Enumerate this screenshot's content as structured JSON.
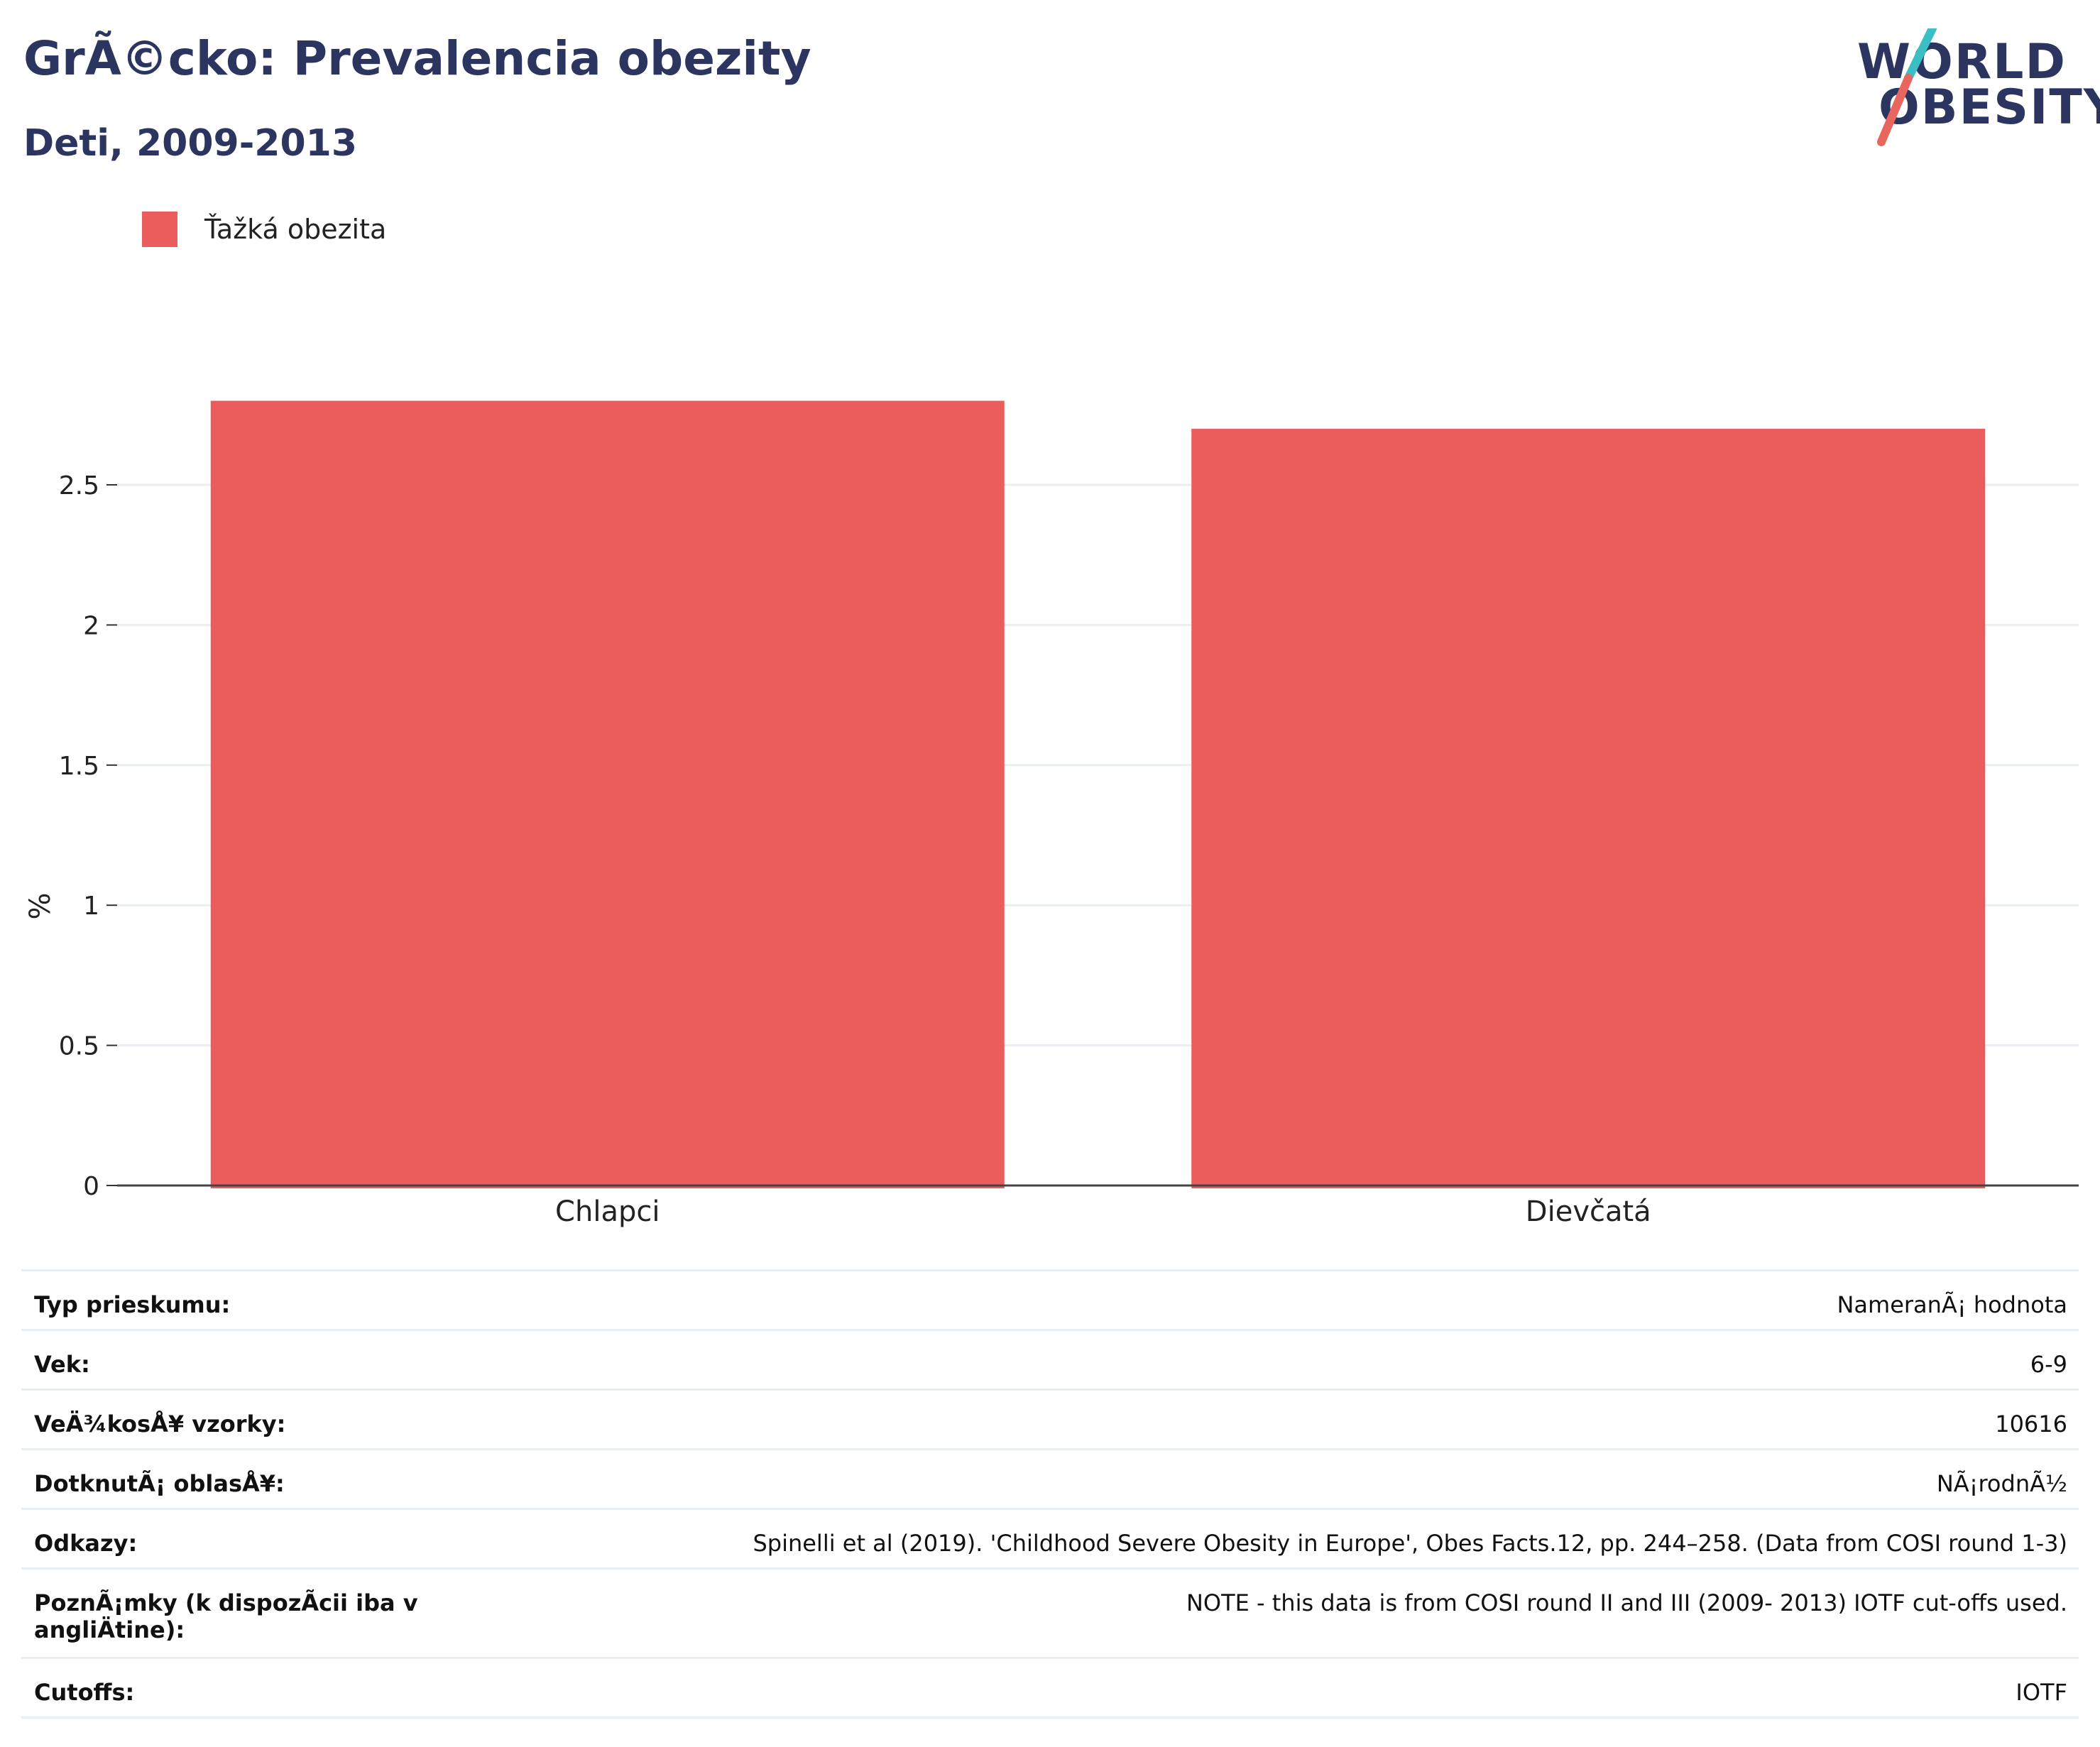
{
  "header": {
    "title": "GrÃ©cko: Prevalencia obezity",
    "subtitle": "Deti, 2009-2013"
  },
  "logo": {
    "line1": "WORLD",
    "line2": "OBESITY",
    "colors": {
      "text": "#2b3560",
      "slash_top": "#3bbfc4",
      "slash_bottom": "#e8665e"
    }
  },
  "legend": {
    "items": [
      {
        "label": "Ťažká obezita",
        "color": "#eb5c5c"
      }
    ]
  },
  "chart_data": {
    "type": "bar",
    "categories": [
      "Chlapci",
      "Dievčatá"
    ],
    "series": [
      {
        "name": "Ťažká obezita",
        "values": [
          2.8,
          2.7
        ],
        "color": "#eb5c5c"
      }
    ],
    "ylabel": "%",
    "xlabel": "",
    "ylim": [
      0,
      3.0
    ],
    "yticks": [
      0,
      0.5,
      1,
      1.5,
      2,
      2.5
    ],
    "ytick_labels": [
      "0",
      "0.5",
      "1",
      "1.5",
      "2",
      "2.5"
    ],
    "grid": true,
    "legend_position": "top-left"
  },
  "info": {
    "rows": [
      {
        "key": "Typ prieskumu:",
        "value": "NameranÃ¡ hodnota"
      },
      {
        "key": "Vek:",
        "value": "6-9"
      },
      {
        "key": "VeÄ¾kosÅ¥ vzorky:",
        "value": "10616"
      },
      {
        "key": "DotknutÃ¡ oblasÅ¥:",
        "value": "NÃ¡rodnÃ½"
      },
      {
        "key": "Odkazy:",
        "value": "Spinelli et al (2019). 'Childhood Severe Obesity in Europe', Obes Facts.12, pp. 244–258. (Data from COSI round 1-3)"
      },
      {
        "key": "PoznÃ¡mky (k dispozÃcii iba v angliÄtine):",
        "value": "NOTE - this data is from COSI round II and III (2009- 2013) IOTF cut-offs used."
      },
      {
        "key": "Cutoffs:",
        "value": "IOTF"
      }
    ]
  }
}
